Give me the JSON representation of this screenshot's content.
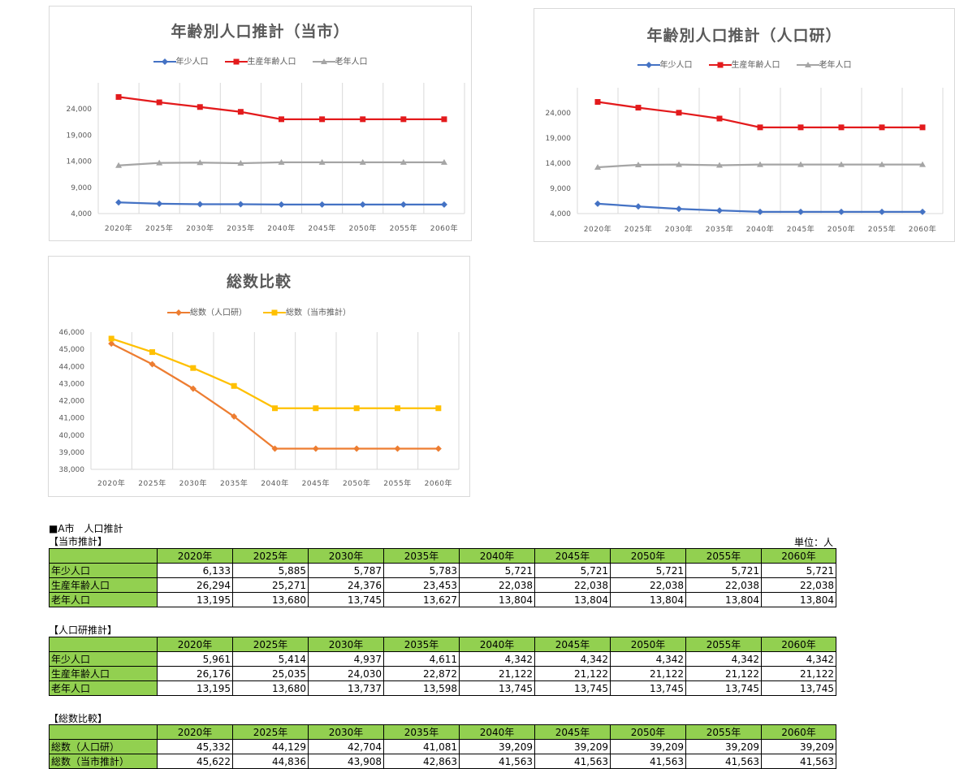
{
  "charts": [
    {
      "title": "年齢別人口推計（当市）",
      "chart_data": {
        "type": "line",
        "title": "年齢別人口推計（当市）",
        "categories": [
          "2020年",
          "2025年",
          "2030年",
          "2035年",
          "2040年",
          "2045年",
          "2050年",
          "2055年",
          "2060年"
        ],
        "ylim": [
          4000,
          29000
        ],
        "yticks": [
          4000,
          9000,
          14000,
          19000,
          24000
        ],
        "ytick_labels": [
          "4,000",
          "9,000",
          "14,000",
          "19,000",
          "24,000"
        ],
        "grid": "vertical",
        "legend": "top",
        "series": [
          {
            "name": "年少人口",
            "color": "#4472c4",
            "marker": "diamond",
            "values": [
              6133,
              5885,
              5787,
              5783,
              5721,
              5721,
              5721,
              5721,
              5721
            ]
          },
          {
            "name": "生産年齢人口",
            "color": "#e31a1c",
            "marker": "square",
            "values": [
              26294,
              25271,
              24376,
              23453,
              22038,
              22038,
              22038,
              22038,
              22038
            ]
          },
          {
            "name": "老年人口",
            "color": "#a5a5a5",
            "marker": "triangle",
            "values": [
              13195,
              13680,
              13745,
              13627,
              13804,
              13804,
              13804,
              13804,
              13804
            ]
          }
        ]
      }
    },
    {
      "title": "年齢別人口推計（人口研）",
      "chart_data": {
        "type": "line",
        "title": "年齢別人口推計（人口研）",
        "categories": [
          "2020年",
          "2025年",
          "2030年",
          "2035年",
          "2040年",
          "2045年",
          "2050年",
          "2055年",
          "2060年"
        ],
        "ylim": [
          4000,
          29000
        ],
        "yticks": [
          4000,
          9000,
          14000,
          19000,
          24000
        ],
        "ytick_labels": [
          "4,000",
          "9,000",
          "14,000",
          "19,000",
          "24,000"
        ],
        "grid": "vertical",
        "legend": "top",
        "series": [
          {
            "name": "年少人口",
            "color": "#4472c4",
            "marker": "diamond",
            "values": [
              5961,
              5414,
              4937,
              4611,
              4342,
              4342,
              4342,
              4342,
              4342
            ]
          },
          {
            "name": "生産年齢人口",
            "color": "#e31a1c",
            "marker": "square",
            "values": [
              26176,
              25035,
              24030,
              22872,
              21122,
              21122,
              21122,
              21122,
              21122
            ]
          },
          {
            "name": "老年人口",
            "color": "#a5a5a5",
            "marker": "triangle",
            "values": [
              13195,
              13680,
              13737,
              13598,
              13745,
              13745,
              13745,
              13745,
              13745
            ]
          }
        ]
      }
    },
    {
      "title": "総数比較",
      "chart_data": {
        "type": "line",
        "title": "総数比較",
        "categories": [
          "2020年",
          "2025年",
          "2030年",
          "2035年",
          "2040年",
          "2045年",
          "2050年",
          "2055年",
          "2060年"
        ],
        "ylim": [
          38000,
          46000
        ],
        "yticks": [
          38000,
          39000,
          40000,
          41000,
          42000,
          43000,
          44000,
          45000,
          46000
        ],
        "ytick_labels": [
          "38,000",
          "39,000",
          "40,000",
          "41,000",
          "42,000",
          "43,000",
          "44,000",
          "45,000",
          "46,000"
        ],
        "grid": "vertical",
        "legend": "top",
        "series": [
          {
            "name": "総数（人口研）",
            "color": "#ed7d31",
            "marker": "diamond",
            "values": [
              45332,
              44129,
              42704,
              41081,
              39209,
              39209,
              39209,
              39209,
              39209
            ]
          },
          {
            "name": "総数（当市推計）",
            "color": "#ffc000",
            "marker": "square",
            "values": [
              45622,
              44836,
              43908,
              42863,
              41563,
              41563,
              41563,
              41563,
              41563
            ]
          }
        ]
      }
    }
  ],
  "sheet": {
    "heading": "■A市　人口推計",
    "unit": "単位：人",
    "years": [
      "2020年",
      "2025年",
      "2030年",
      "2035年",
      "2040年",
      "2045年",
      "2050年",
      "2055年",
      "2060年"
    ],
    "tables": [
      {
        "label": "【当市推計】",
        "rows": [
          {
            "label": "年少人口",
            "values": [
              "6,133",
              "5,885",
              "5,787",
              "5,783",
              "5,721",
              "5,721",
              "5,721",
              "5,721",
              "5,721"
            ]
          },
          {
            "label": "生産年齢人口",
            "values": [
              "26,294",
              "25,271",
              "24,376",
              "23,453",
              "22,038",
              "22,038",
              "22,038",
              "22,038",
              "22,038"
            ]
          },
          {
            "label": "老年人口",
            "values": [
              "13,195",
              "13,680",
              "13,745",
              "13,627",
              "13,804",
              "13,804",
              "13,804",
              "13,804",
              "13,804"
            ]
          }
        ]
      },
      {
        "label": "【人口研推計】",
        "rows": [
          {
            "label": "年少人口",
            "values": [
              "5,961",
              "5,414",
              "4,937",
              "4,611",
              "4,342",
              "4,342",
              "4,342",
              "4,342",
              "4,342"
            ]
          },
          {
            "label": "生産年齢人口",
            "values": [
              "26,176",
              "25,035",
              "24,030",
              "22,872",
              "21,122",
              "21,122",
              "21,122",
              "21,122",
              "21,122"
            ]
          },
          {
            "label": "老年人口",
            "values": [
              "13,195",
              "13,680",
              "13,737",
              "13,598",
              "13,745",
              "13,745",
              "13,745",
              "13,745",
              "13,745"
            ]
          }
        ]
      },
      {
        "label": "【総数比較】",
        "rows": [
          {
            "label": "総数（人口研）",
            "values": [
              "45,332",
              "44,129",
              "42,704",
              "41,081",
              "39,209",
              "39,209",
              "39,209",
              "39,209",
              "39,209"
            ]
          },
          {
            "label": "総数（当市推計）",
            "values": [
              "45,622",
              "44,836",
              "43,908",
              "42,863",
              "41,563",
              "41,563",
              "41,563",
              "41,563",
              "41,563"
            ]
          }
        ]
      }
    ]
  }
}
